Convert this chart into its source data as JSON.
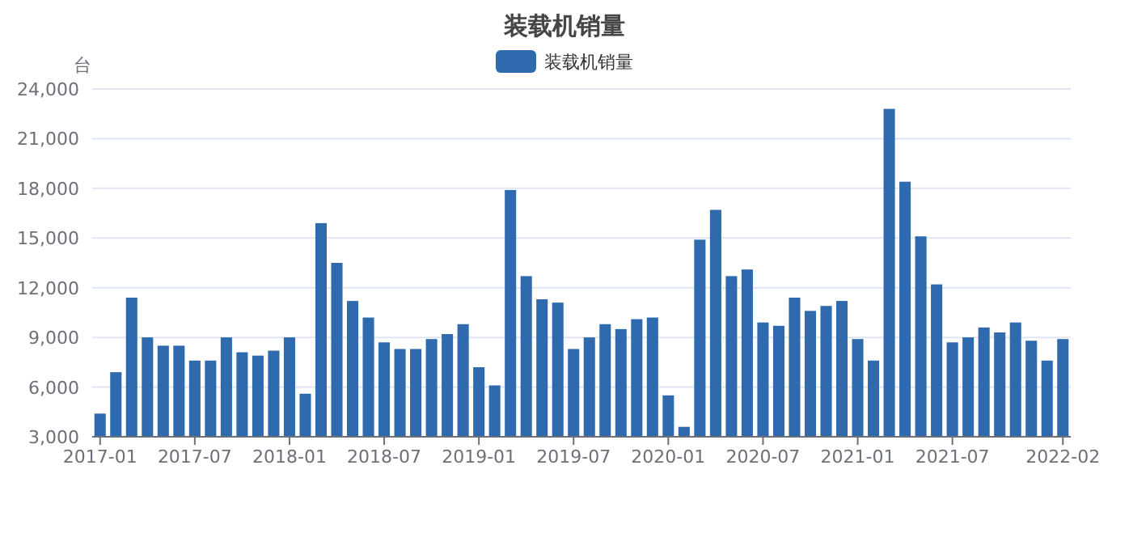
{
  "chart_data": {
    "type": "bar",
    "title": "装载机销量",
    "ylabel": "台",
    "categories": [
      "2017-01",
      null,
      null,
      null,
      null,
      null,
      "2017-07",
      null,
      null,
      null,
      null,
      null,
      "2018-01",
      null,
      null,
      null,
      null,
      null,
      "2018-07",
      null,
      null,
      null,
      null,
      null,
      "2019-01",
      null,
      null,
      null,
      null,
      null,
      "2019-07",
      null,
      null,
      null,
      null,
      null,
      "2020-01",
      null,
      null,
      null,
      null,
      null,
      "2020-07",
      null,
      null,
      null,
      null,
      null,
      "2021-01",
      null,
      null,
      null,
      null,
      null,
      "2021-07",
      null,
      null,
      null,
      null,
      null,
      null,
      "2022-02"
    ],
    "series": [
      {
        "name": "装载机销量",
        "color": "#2e6aad",
        "values": [
          4400,
          6900,
          11400,
          9000,
          8500,
          8500,
          7600,
          7600,
          9000,
          8100,
          7900,
          8200,
          9000,
          5600,
          15900,
          13500,
          11200,
          10200,
          8700,
          8300,
          8300,
          8900,
          9200,
          9800,
          7200,
          6100,
          17900,
          12700,
          11300,
          11100,
          8300,
          9000,
          9800,
          9500,
          10100,
          10200,
          5500,
          3600,
          14900,
          16700,
          12700,
          13100,
          9900,
          9700,
          11400,
          10600,
          10900,
          11200,
          8900,
          7600,
          22800,
          18400,
          15100,
          12200,
          8700,
          9000,
          9600,
          9300,
          9900,
          8800,
          7600,
          8900
        ]
      }
    ],
    "ylim": [
      3000,
      24000
    ],
    "yticks": [
      {
        "value": 3000,
        "label": "3,000"
      },
      {
        "value": 6000,
        "label": "6,000"
      },
      {
        "value": 9000,
        "label": "9,000"
      },
      {
        "value": 12000,
        "label": "12,000"
      },
      {
        "value": 15000,
        "label": "15,000"
      },
      {
        "value": 18000,
        "label": "18,000"
      },
      {
        "value": 21000,
        "label": "21,000"
      },
      {
        "value": 24000,
        "label": "24,000"
      }
    ],
    "grid": "y",
    "legend": "top"
  }
}
